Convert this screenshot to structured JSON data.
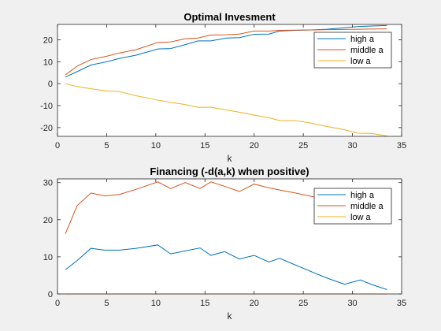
{
  "chart_data": [
    {
      "type": "line",
      "title": "Optimal Invesment",
      "xlabel": "k",
      "ylabel": "",
      "xlim": [
        0,
        35
      ],
      "ylim": [
        -24,
        27
      ],
      "xticks": [
        0,
        5,
        10,
        15,
        20,
        25,
        30,
        35
      ],
      "yticks": [
        -20,
        -10,
        0,
        10,
        20
      ],
      "grid": false,
      "legend_position": "top-right",
      "x": [
        0.8,
        2.0,
        3.4,
        5.0,
        6.3,
        8.0,
        10.2,
        11.5,
        13.0,
        14.3,
        15.6,
        17.2,
        18.5,
        20.0,
        21.5,
        22.6,
        24.2,
        25.8,
        27.4,
        29.2,
        30.5,
        32.0,
        33.5
      ],
      "series": [
        {
          "name": "high a",
          "color": "#0072BD",
          "values": [
            3.0,
            5.5,
            8.5,
            10.0,
            11.5,
            13.0,
            15.8,
            16.0,
            17.8,
            19.5,
            19.5,
            20.8,
            21.0,
            22.5,
            22.6,
            24.0,
            24.3,
            24.5,
            24.8,
            25.5,
            26.0,
            26.3,
            26.5
          ]
        },
        {
          "name": "middle a",
          "color": "#D95319",
          "values": [
            4.0,
            8.0,
            11.0,
            12.5,
            14.0,
            15.5,
            18.8,
            19.0,
            20.5,
            20.8,
            22.2,
            22.3,
            22.6,
            24.0,
            24.0,
            24.3,
            24.4,
            24.5,
            24.6,
            24.7,
            24.8,
            24.9,
            25.0
          ]
        },
        {
          "name": "low a",
          "color": "#EDB120",
          "values": [
            0.0,
            -1.3,
            -2.3,
            -3.3,
            -3.6,
            -5.5,
            -7.5,
            -8.5,
            -9.5,
            -10.8,
            -10.7,
            -12.0,
            -13.0,
            -14.3,
            -15.5,
            -16.8,
            -16.8,
            -18.0,
            -19.5,
            -21.0,
            -22.5,
            -22.7,
            -23.8
          ]
        }
      ]
    },
    {
      "type": "line",
      "title": "Financing (-d(a,k) when positive)",
      "xlabel": "k",
      "ylabel": "",
      "xlim": [
        0,
        35
      ],
      "ylim": [
        0,
        31
      ],
      "xticks": [
        0,
        5,
        10,
        15,
        20,
        25,
        30,
        35
      ],
      "yticks": [
        0,
        10,
        20,
        30
      ],
      "grid": false,
      "legend_position": "top-right",
      "x": [
        0.8,
        2.0,
        3.4,
        4.8,
        6.3,
        8.0,
        10.2,
        11.5,
        13.0,
        14.5,
        15.6,
        17.0,
        18.5,
        20.0,
        21.5,
        22.6,
        24.2,
        26.0,
        27.5,
        29.2,
        30.8,
        32.0,
        33.5
      ],
      "series": [
        {
          "name": "high a",
          "color": "#0072BD",
          "values": [
            6.5,
            9.0,
            12.3,
            11.8,
            11.8,
            12.3,
            13.2,
            10.8,
            11.6,
            12.4,
            10.4,
            11.4,
            9.4,
            10.4,
            8.6,
            9.6,
            7.8,
            5.8,
            4.2,
            2.6,
            3.8,
            2.5,
            1.2
          ]
        },
        {
          "name": "middle a",
          "color": "#D95319",
          "values": [
            16.2,
            23.8,
            27.2,
            26.4,
            26.8,
            28.2,
            30.2,
            28.4,
            30.0,
            28.4,
            30.2,
            29.0,
            27.6,
            29.6,
            28.6,
            28.0,
            27.2,
            26.2,
            25.2,
            24.6,
            24.0,
            23.5,
            23.0
          ]
        },
        {
          "name": "low a",
          "color": "#EDB120",
          "values": [
            0,
            0,
            0,
            0,
            0,
            0,
            0,
            0,
            0,
            0,
            0,
            0,
            0,
            0,
            0,
            0,
            0,
            0,
            0,
            0,
            0,
            0,
            0
          ]
        }
      ]
    }
  ]
}
